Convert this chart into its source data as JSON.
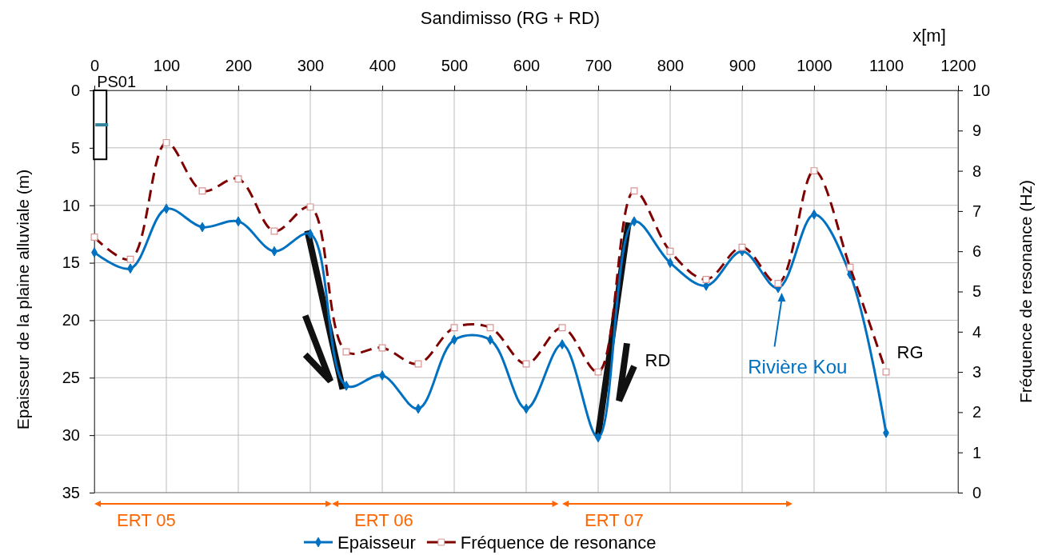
{
  "chart_data": {
    "type": "line",
    "title": "Sandimisso (RG + RD)",
    "xlabel": "x[m]",
    "ylabel": "Epaisseur de la plaine alluviale (m)",
    "y2label": "Fréquence de resonance (Hz)",
    "x": [
      0,
      50,
      100,
      150,
      200,
      250,
      300,
      350,
      400,
      450,
      500,
      550,
      600,
      650,
      700,
      750,
      800,
      850,
      900,
      950,
      1000,
      1050,
      1100
    ],
    "xlim": [
      0,
      1200
    ],
    "xticks": [
      0,
      100,
      200,
      300,
      400,
      500,
      600,
      700,
      800,
      900,
      1000,
      1100,
      1200
    ],
    "ylim": [
      35,
      0
    ],
    "yticks": [
      0,
      5,
      10,
      15,
      20,
      25,
      30,
      35
    ],
    "y2lim": [
      0,
      10
    ],
    "y2ticks": [
      0,
      1,
      2,
      3,
      4,
      5,
      6,
      7,
      8,
      9,
      10
    ],
    "grid": true,
    "legend": "bottom",
    "series": [
      {
        "name": "PS01",
        "type": "bar",
        "color": "#000000",
        "x": [
          8
        ],
        "base": [
          0
        ],
        "values": [
          6
        ]
      },
      {
        "name": "Epaisseur",
        "color": "#0070c0",
        "marker": "diamond",
        "line_style": "solid",
        "values": [
          14.1,
          15.5,
          10.3,
          11.9,
          11.4,
          14.0,
          12.5,
          25.7,
          24.8,
          27.7,
          21.7,
          21.7,
          27.7,
          22.1,
          30.2,
          11.4,
          15.0,
          17.0,
          14.0,
          17.2,
          10.8,
          16.0,
          29.8
        ]
      },
      {
        "name": "Fréquence de resonance",
        "color": "#7f0000",
        "marker": "square",
        "line_style": "dashed",
        "axis": "y2",
        "values": [
          6.35,
          5.8,
          8.7,
          7.5,
          7.8,
          6.5,
          7.1,
          3.5,
          3.6,
          3.2,
          4.1,
          4.1,
          3.2,
          4.1,
          3.0,
          7.5,
          6.0,
          5.3,
          6.1,
          5.2,
          8.0,
          5.6,
          3.0
        ]
      }
    ],
    "annotations": [
      "RD",
      "RG",
      "Rivière Kou",
      "ERT 05",
      "ERT 06",
      "ERT 07"
    ]
  }
}
